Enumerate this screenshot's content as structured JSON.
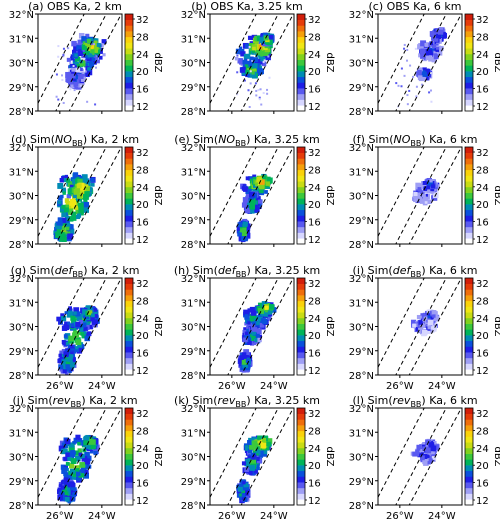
{
  "colorbar": {
    "ticks": [
      "32",
      "28",
      "24",
      "20",
      "16",
      "12"
    ],
    "unit": "dBZ",
    "colors": [
      "#ffffff",
      "#d7d7ff",
      "#9f9ff5",
      "#5a5af0",
      "#1e1ee6",
      "#0a50dc",
      "#008cb4",
      "#00b45a",
      "#3cc83c",
      "#82d21e",
      "#c8dc14",
      "#f0e614",
      "#fad20a",
      "#f5a00a",
      "#f06e0a",
      "#e63c0a",
      "#d21e0a"
    ]
  },
  "axes": {
    "lat_ticks": [
      "32°N",
      "31°N",
      "30°N",
      "29°N",
      "28°N"
    ],
    "lon_ticks": [
      "26°W",
      "24°W"
    ]
  },
  "panels": [
    {
      "id": "a",
      "label": "(a) OBS Ka, 2 km",
      "prefix": "(a) OBS Ka, 2 km",
      "sub": "",
      "suffix": "",
      "row": 0,
      "col": 0,
      "type": "obs2",
      "showLon": false
    },
    {
      "id": "b",
      "label": "(b) OBS Ka, 3.25 km",
      "prefix": "(b) OBS Ka, 3.25 km",
      "sub": "",
      "suffix": "",
      "row": 0,
      "col": 1,
      "type": "obs3",
      "showLon": false
    },
    {
      "id": "c",
      "label": "(c) OBS Ka, 6 km",
      "prefix": "(c) OBS Ka, 6 km",
      "sub": "",
      "suffix": "",
      "row": 0,
      "col": 2,
      "type": "obs6",
      "showLon": false
    },
    {
      "id": "d",
      "label": "(d) Sim(NOBB) Ka, 2 km",
      "prefix": "(d) Sim(",
      "ital": "NO",
      "sub": "BB",
      "suffix": ") Ka, 2 km",
      "row": 1,
      "col": 0,
      "type": "sim2",
      "showLon": false
    },
    {
      "id": "e",
      "label": "(e) Sim(NOBB) Ka, 3.25 km",
      "prefix": "(e) Sim(",
      "ital": "NO",
      "sub": "BB",
      "suffix": ") Ka, 3.25 km",
      "row": 1,
      "col": 1,
      "type": "sim3",
      "showLon": false
    },
    {
      "id": "f",
      "label": "(f) Sim(NOBB) Ka, 6 km",
      "prefix": "(f) Sim(",
      "ital": "NO",
      "sub": "BB",
      "suffix": ") Ka, 6 km",
      "row": 1,
      "col": 2,
      "type": "sim6",
      "showLon": false
    },
    {
      "id": "g",
      "label": "(g) Sim(defBB) Ka, 2 km",
      "prefix": "(g) Sim(",
      "ital": "def",
      "sub": "BB",
      "suffix": ") Ka, 2 km",
      "row": 2,
      "col": 0,
      "type": "def2",
      "showLon": true
    },
    {
      "id": "h",
      "label": "(h) Sim(defBB) Ka, 3.25 km",
      "prefix": "(h) Sim(",
      "ital": "def",
      "sub": "BB",
      "suffix": ") Ka, 3.25 km",
      "row": 2,
      "col": 1,
      "type": "def3",
      "showLon": true
    },
    {
      "id": "i",
      "label": "(i) Sim(defBB) Ka, 6 km",
      "prefix": "(i) Sim(",
      "ital": "def",
      "sub": "BB",
      "suffix": ") Ka, 6 km",
      "row": 2,
      "col": 2,
      "type": "sim6",
      "showLon": true
    },
    {
      "id": "j",
      "label": "(j) Sim(revBB) Ka, 2 km",
      "prefix": "(j) Sim(",
      "ital": "rev",
      "sub": "BB",
      "suffix": ") Ka, 2 km",
      "row": 3,
      "col": 0,
      "type": "def2",
      "showLon": true
    },
    {
      "id": "k",
      "label": "(k) Sim(revBB) Ka, 3.25 km",
      "prefix": "(k) Sim(",
      "ital": "rev",
      "sub": "BB",
      "suffix": ") Ka, 3.25 km",
      "row": 3,
      "col": 1,
      "type": "sim3",
      "showLon": true
    },
    {
      "id": "l",
      "label": "(l) Sim(revBB) Ka, 6 km",
      "prefix": "(l) Sim(",
      "ital": "rev",
      "sub": "BB",
      "suffix": ") Ka, 6 km",
      "row": 3,
      "col": 2,
      "type": "sim6",
      "showLon": true
    }
  ]
}
